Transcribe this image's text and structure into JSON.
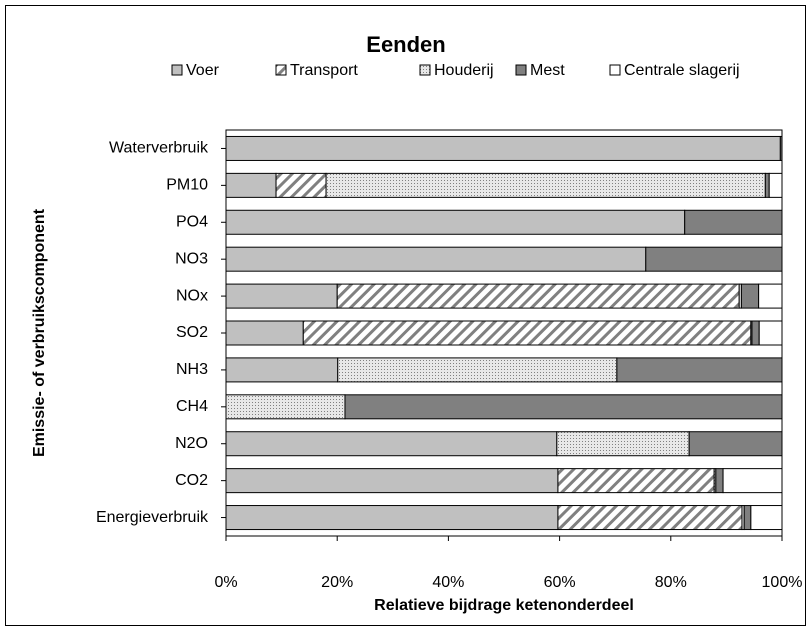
{
  "chart_data": {
    "type": "stacked-barh",
    "title": "Eenden",
    "xlabel": "Relatieve bijdrage ketenonderdeel",
    "ylabel": "Emissie- of verbruikscomponent",
    "categories": [
      "Waterverbruik",
      "PM10",
      "PO4",
      "NO3",
      "NOx",
      "SO2",
      "NH3",
      "CH4",
      "N2O",
      "CO2",
      "Energieverbruik"
    ],
    "series": [
      {
        "name": "Voer",
        "color": "#c0c0c0",
        "pattern": "solid",
        "values": [
          99.7,
          9,
          82.5,
          75.5,
          20,
          13.9,
          20.1,
          0,
          59.5,
          59.7,
          59.7
        ]
      },
      {
        "name": "Transport",
        "color": "#808080",
        "pattern": "hatch",
        "values": [
          0,
          9,
          0,
          0,
          72.3,
          80.5,
          0,
          0,
          0,
          28.1,
          33.1
        ]
      },
      {
        "name": "Houderij",
        "color": "#808080",
        "pattern": "dots",
        "values": [
          0,
          79,
          0,
          0,
          0.4,
          0.2,
          50.2,
          21.4,
          23.8,
          0.3,
          0.4
        ]
      },
      {
        "name": "Mest",
        "color": "#808080",
        "pattern": "solid",
        "values": [
          0.3,
          0.7,
          17.5,
          24.5,
          3.1,
          1.3,
          29.7,
          78.6,
          16.7,
          1.3,
          1.2
        ]
      },
      {
        "name": "Centrale slagerij",
        "color": "#ffffff",
        "pattern": "solid",
        "values": [
          0,
          2.3,
          0,
          0,
          4.2,
          4.1,
          0,
          0,
          0,
          10.6,
          5.6
        ]
      }
    ],
    "xlim": [
      0,
      100
    ],
    "xticks": [
      {
        "value": 0,
        "label": "0%"
      },
      {
        "value": 20,
        "label": "20%"
      },
      {
        "value": 40,
        "label": "40%"
      },
      {
        "value": 60,
        "label": "60%"
      },
      {
        "value": 80,
        "label": "80%"
      },
      {
        "value": 100,
        "label": "100%"
      }
    ],
    "legend": "top"
  }
}
